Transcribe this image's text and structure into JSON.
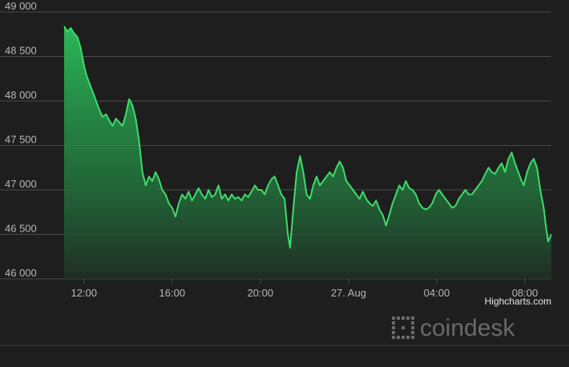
{
  "credits": "Highcharts.com",
  "watermark": "coindesk",
  "colors": {
    "background": "#1e1e1e",
    "grid": "#4a4a4a",
    "line": "#3ddc6a",
    "area_top": "#2bbf5b",
    "area_bottom": "#1f2f24",
    "tick_text": "#b8b8b8"
  },
  "chart_data": {
    "type": "area",
    "title": "",
    "xlabel": "",
    "ylabel": "",
    "grid": true,
    "legend": "none",
    "ylim": [
      46000,
      49000
    ],
    "y_ticks": [
      {
        "value": 46000,
        "label": "46 000"
      },
      {
        "value": 46500,
        "label": "46 500"
      },
      {
        "value": 47000,
        "label": "47 000"
      },
      {
        "value": 47500,
        "label": "47 500"
      },
      {
        "value": 48000,
        "label": "48 000"
      },
      {
        "value": 48500,
        "label": "48 500"
      },
      {
        "value": 49000,
        "label": "49 000"
      }
    ],
    "x_unit": "hours since 26 Aug 00:00",
    "xlim": [
      11.1,
      33.2
    ],
    "x_ticks": [
      {
        "value": 12,
        "label": "12:00"
      },
      {
        "value": 16,
        "label": "16:00"
      },
      {
        "value": 20,
        "label": "20:00"
      },
      {
        "value": 24,
        "label": "27. Aug"
      },
      {
        "value": 28,
        "label": "04:00"
      },
      {
        "value": 32,
        "label": "08:00"
      }
    ],
    "series": [
      {
        "points": [
          [
            11.1,
            48840
          ],
          [
            11.25,
            48780
          ],
          [
            11.4,
            48820
          ],
          [
            11.55,
            48760
          ],
          [
            11.7,
            48720
          ],
          [
            11.85,
            48600
          ],
          [
            12.0,
            48400
          ],
          [
            12.1,
            48300
          ],
          [
            12.25,
            48200
          ],
          [
            12.4,
            48100
          ],
          [
            12.55,
            48000
          ],
          [
            12.7,
            47900
          ],
          [
            12.85,
            47820
          ],
          [
            13.0,
            47850
          ],
          [
            13.15,
            47780
          ],
          [
            13.3,
            47720
          ],
          [
            13.45,
            47800
          ],
          [
            13.6,
            47760
          ],
          [
            13.75,
            47720
          ],
          [
            13.9,
            47850
          ],
          [
            14.05,
            48020
          ],
          [
            14.2,
            47950
          ],
          [
            14.35,
            47800
          ],
          [
            14.5,
            47550
          ],
          [
            14.65,
            47200
          ],
          [
            14.8,
            47050
          ],
          [
            14.95,
            47150
          ],
          [
            15.1,
            47100
          ],
          [
            15.25,
            47200
          ],
          [
            15.4,
            47120
          ],
          [
            15.55,
            47000
          ],
          [
            15.7,
            46950
          ],
          [
            15.85,
            46850
          ],
          [
            16.0,
            46800
          ],
          [
            16.15,
            46700
          ],
          [
            16.3,
            46850
          ],
          [
            16.45,
            46950
          ],
          [
            16.6,
            46900
          ],
          [
            16.75,
            46980
          ],
          [
            16.9,
            46880
          ],
          [
            17.05,
            46950
          ],
          [
            17.2,
            47020
          ],
          [
            17.35,
            46950
          ],
          [
            17.5,
            46900
          ],
          [
            17.65,
            47000
          ],
          [
            17.8,
            46920
          ],
          [
            17.95,
            46950
          ],
          [
            18.1,
            47050
          ],
          [
            18.25,
            46900
          ],
          [
            18.4,
            46950
          ],
          [
            18.55,
            46880
          ],
          [
            18.7,
            46950
          ],
          [
            18.85,
            46900
          ],
          [
            19.0,
            46920
          ],
          [
            19.15,
            46880
          ],
          [
            19.3,
            46950
          ],
          [
            19.45,
            46920
          ],
          [
            19.6,
            46980
          ],
          [
            19.75,
            47050
          ],
          [
            19.9,
            47000
          ],
          [
            20.05,
            47000
          ],
          [
            20.2,
            46950
          ],
          [
            20.35,
            47050
          ],
          [
            20.5,
            47120
          ],
          [
            20.65,
            47150
          ],
          [
            20.8,
            47050
          ],
          [
            20.95,
            46950
          ],
          [
            21.1,
            46900
          ],
          [
            21.25,
            46500
          ],
          [
            21.35,
            46350
          ],
          [
            21.5,
            46800
          ],
          [
            21.65,
            47200
          ],
          [
            21.8,
            47380
          ],
          [
            21.95,
            47200
          ],
          [
            22.1,
            46950
          ],
          [
            22.25,
            46900
          ],
          [
            22.4,
            47050
          ],
          [
            22.55,
            47150
          ],
          [
            22.7,
            47050
          ],
          [
            22.85,
            47100
          ],
          [
            23.0,
            47150
          ],
          [
            23.15,
            47200
          ],
          [
            23.3,
            47150
          ],
          [
            23.45,
            47250
          ],
          [
            23.6,
            47320
          ],
          [
            23.75,
            47250
          ],
          [
            23.9,
            47100
          ],
          [
            24.05,
            47050
          ],
          [
            24.2,
            47000
          ],
          [
            24.35,
            46950
          ],
          [
            24.5,
            46900
          ],
          [
            24.65,
            46980
          ],
          [
            24.8,
            46900
          ],
          [
            24.95,
            46850
          ],
          [
            25.1,
            46820
          ],
          [
            25.25,
            46880
          ],
          [
            25.4,
            46780
          ],
          [
            25.55,
            46720
          ],
          [
            25.7,
            46600
          ],
          [
            25.85,
            46720
          ],
          [
            26.0,
            46850
          ],
          [
            26.15,
            46950
          ],
          [
            26.3,
            47050
          ],
          [
            26.45,
            47000
          ],
          [
            26.6,
            47100
          ],
          [
            26.75,
            47020
          ],
          [
            26.9,
            47000
          ],
          [
            27.05,
            46950
          ],
          [
            27.2,
            46850
          ],
          [
            27.35,
            46800
          ],
          [
            27.5,
            46780
          ],
          [
            27.65,
            46800
          ],
          [
            27.8,
            46850
          ],
          [
            27.95,
            46950
          ],
          [
            28.1,
            47000
          ],
          [
            28.25,
            46950
          ],
          [
            28.4,
            46900
          ],
          [
            28.55,
            46850
          ],
          [
            28.7,
            46800
          ],
          [
            28.85,
            46820
          ],
          [
            29.0,
            46900
          ],
          [
            29.15,
            46950
          ],
          [
            29.3,
            47000
          ],
          [
            29.45,
            46950
          ],
          [
            29.6,
            46950
          ],
          [
            29.75,
            47000
          ],
          [
            29.9,
            47050
          ],
          [
            30.05,
            47100
          ],
          [
            30.2,
            47180
          ],
          [
            30.35,
            47250
          ],
          [
            30.5,
            47200
          ],
          [
            30.65,
            47180
          ],
          [
            30.8,
            47250
          ],
          [
            30.95,
            47300
          ],
          [
            31.1,
            47200
          ],
          [
            31.25,
            47350
          ],
          [
            31.4,
            47420
          ],
          [
            31.55,
            47300
          ],
          [
            31.7,
            47200
          ],
          [
            31.85,
            47100
          ],
          [
            31.95,
            47050
          ],
          [
            32.1,
            47200
          ],
          [
            32.25,
            47300
          ],
          [
            32.4,
            47350
          ],
          [
            32.55,
            47250
          ],
          [
            32.7,
            47000
          ],
          [
            32.85,
            46800
          ],
          [
            32.95,
            46600
          ],
          [
            33.05,
            46420
          ],
          [
            33.2,
            46500
          ]
        ]
      }
    ]
  }
}
